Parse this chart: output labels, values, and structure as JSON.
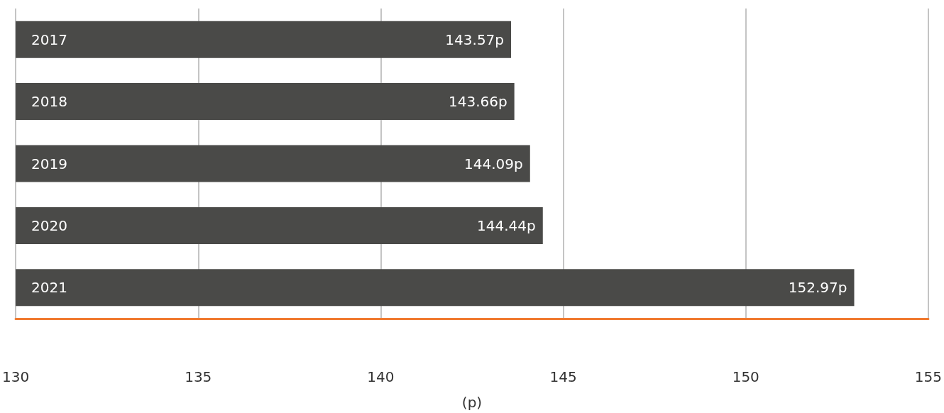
{
  "chart_data": {
    "type": "bar",
    "orientation": "horizontal",
    "xlabel": "(p)",
    "categories": [
      "2017",
      "2018",
      "2019",
      "2020",
      "2021"
    ],
    "values": [
      143.57,
      143.66,
      144.09,
      144.44,
      152.97
    ],
    "value_labels": [
      "143.57p",
      "143.66p",
      "144.09p",
      "144.44p",
      "152.97p"
    ],
    "color": "#4a4a48",
    "xlim": [
      130,
      155
    ],
    "xticks": [
      130,
      135,
      140,
      145,
      150,
      155
    ],
    "grid": "x"
  }
}
